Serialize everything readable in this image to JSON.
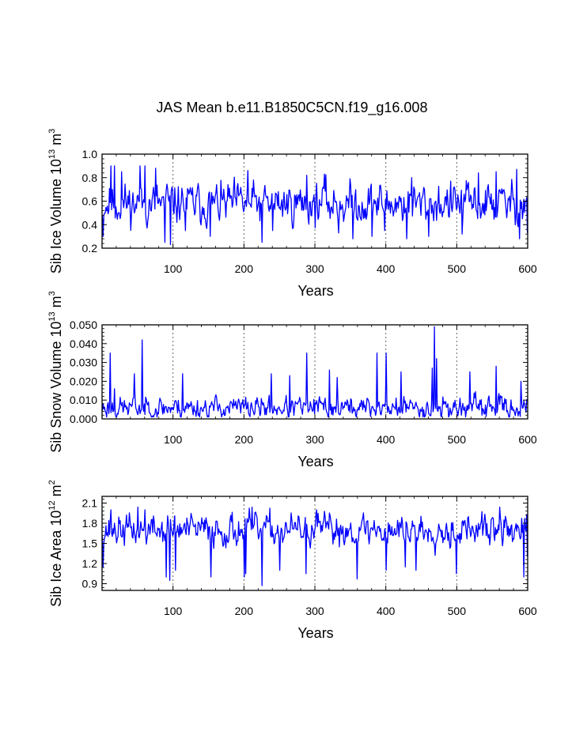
{
  "figure": {
    "title": "JAS Mean b.e11.B1850C5CN.f19_g16.008",
    "line_color": "#0000ff",
    "axis_color": "#000000",
    "grid_color": "#666666"
  },
  "chart_data": [
    {
      "type": "line",
      "ylabel_main": "Sib Ice Volume 10",
      "ylabel_exp": "13",
      "ylabel_unit": " m",
      "ylabel_unit_exp": "3",
      "xlabel": "Years",
      "xlim": [
        0,
        600
      ],
      "ylim": [
        0.2,
        1.0
      ],
      "xticks": [
        100,
        200,
        300,
        400,
        500,
        600
      ],
      "xtick_labels": [
        "100",
        "200",
        "300",
        "400",
        "500",
        "600"
      ],
      "yticks": [
        0.2,
        0.4,
        0.6,
        0.8,
        1.0
      ],
      "ytick_labels": [
        "0.2",
        "0.4",
        "0.6",
        "0.8",
        "1.0"
      ],
      "vgrid": [
        100,
        200,
        300,
        400,
        500
      ],
      "series": [
        {
          "name": "Sib Ice Volume",
          "baseline": 0.58,
          "amplitude": 0.12,
          "min": 0.23,
          "max": 0.9,
          "seed": 11,
          "anchors": [
            [
              1,
              0.3
            ],
            [
              4,
              0.5
            ],
            [
              12,
              0.9
            ],
            [
              17,
              0.91
            ],
            [
              20,
              0.5
            ],
            [
              27,
              0.85
            ],
            [
              53,
              0.91
            ],
            [
              60,
              0.9
            ],
            [
              75,
              0.88
            ],
            [
              88,
              0.25
            ],
            [
              96,
              0.23
            ],
            [
              110,
              0.55
            ],
            [
              117,
              0.35
            ],
            [
              135,
              0.75
            ],
            [
              152,
              0.3
            ],
            [
              205,
              0.86
            ],
            [
              225,
              0.25
            ],
            [
              240,
              0.35
            ],
            [
              288,
              0.82
            ],
            [
              313,
              0.83
            ],
            [
              333,
              0.33
            ],
            [
              353,
              0.28
            ],
            [
              380,
              0.3
            ],
            [
              398,
              0.35
            ],
            [
              429,
              0.28
            ],
            [
              436,
              0.8
            ],
            [
              460,
              0.3
            ],
            [
              507,
              0.32
            ],
            [
              530,
              0.84
            ],
            [
              555,
              0.85
            ],
            [
              584,
              0.87
            ],
            [
              588,
              0.28
            ],
            [
              592,
              0.45
            ],
            [
              599,
              0.33
            ]
          ]
        }
      ]
    },
    {
      "type": "line",
      "ylabel_main": "Sib Snow Volume 10",
      "ylabel_exp": "13",
      "ylabel_unit": " m",
      "ylabel_unit_exp": "3",
      "xlabel": "Years",
      "xlim": [
        0,
        600
      ],
      "ylim": [
        0.0,
        0.05
      ],
      "xticks": [
        100,
        200,
        300,
        400,
        500,
        600
      ],
      "xtick_labels": [
        "100",
        "200",
        "300",
        "400",
        "500",
        "600"
      ],
      "yticks": [
        0.0,
        0.01,
        0.02,
        0.03,
        0.04,
        0.05
      ],
      "ytick_labels": [
        "0.000",
        "0.010",
        "0.020",
        "0.030",
        "0.040",
        "0.050"
      ],
      "vgrid": [
        100,
        200,
        300,
        400,
        500
      ],
      "series": [
        {
          "name": "Sib Snow Volume",
          "baseline": 0.006,
          "amplitude": 0.004,
          "min": 0.001,
          "max": 0.049,
          "seed": 23,
          "anchors": [
            [
              11,
              0.035
            ],
            [
              17,
              0.016
            ],
            [
              45,
              0.024
            ],
            [
              56,
              0.042
            ],
            [
              113,
              0.024
            ],
            [
              238,
              0.024
            ],
            [
              264,
              0.023
            ],
            [
              288,
              0.035
            ],
            [
              320,
              0.026
            ],
            [
              331,
              0.022
            ],
            [
              387,
              0.035
            ],
            [
              400,
              0.035
            ],
            [
              421,
              0.025
            ],
            [
              465,
              0.027
            ],
            [
              468,
              0.049
            ],
            [
              471,
              0.032
            ],
            [
              518,
              0.025
            ],
            [
              555,
              0.028
            ],
            [
              590,
              0.02
            ]
          ]
        }
      ]
    },
    {
      "type": "line",
      "ylabel_main": "Sib Ice Area 10",
      "ylabel_exp": "12",
      "ylabel_unit": " m",
      "ylabel_unit_exp": "2",
      "xlabel": "Years",
      "xlim": [
        0,
        600
      ],
      "ylim": [
        0.8,
        2.2
      ],
      "xticks": [
        100,
        200,
        300,
        400,
        500,
        600
      ],
      "xtick_labels": [
        "100",
        "200",
        "300",
        "400",
        "500",
        "600"
      ],
      "yticks": [
        0.9,
        1.2,
        1.5,
        1.8,
        2.1
      ],
      "ytick_labels": [
        "0.9",
        "1.2",
        "1.5",
        "1.8",
        "2.1"
      ],
      "vgrid": [
        100,
        200,
        300,
        400,
        500
      ],
      "series": [
        {
          "name": "Sib Ice Area",
          "baseline": 1.7,
          "amplitude": 0.16,
          "min": 0.87,
          "max": 2.04,
          "seed": 37,
          "anchors": [
            [
              1,
              1.15
            ],
            [
              12,
              2.0
            ],
            [
              50,
              2.05
            ],
            [
              60,
              2.0
            ],
            [
              90,
              1.0
            ],
            [
              95,
              0.95
            ],
            [
              103,
              1.1
            ],
            [
              153,
              1.0
            ],
            [
              200,
              1.0
            ],
            [
              202,
              1.05
            ],
            [
              211,
              2.04
            ],
            [
              225,
              0.87
            ],
            [
              250,
              1.1
            ],
            [
              287,
              1.05
            ],
            [
              302,
              2.0
            ],
            [
              359,
              0.97
            ],
            [
              388,
              1.75
            ],
            [
              400,
              1.1
            ],
            [
              427,
              1.15
            ],
            [
              442,
              1.1
            ],
            [
              499,
              1.05
            ],
            [
              560,
              2.04
            ],
            [
              594,
              1.0
            ],
            [
              599,
              1.3
            ]
          ]
        }
      ]
    }
  ]
}
